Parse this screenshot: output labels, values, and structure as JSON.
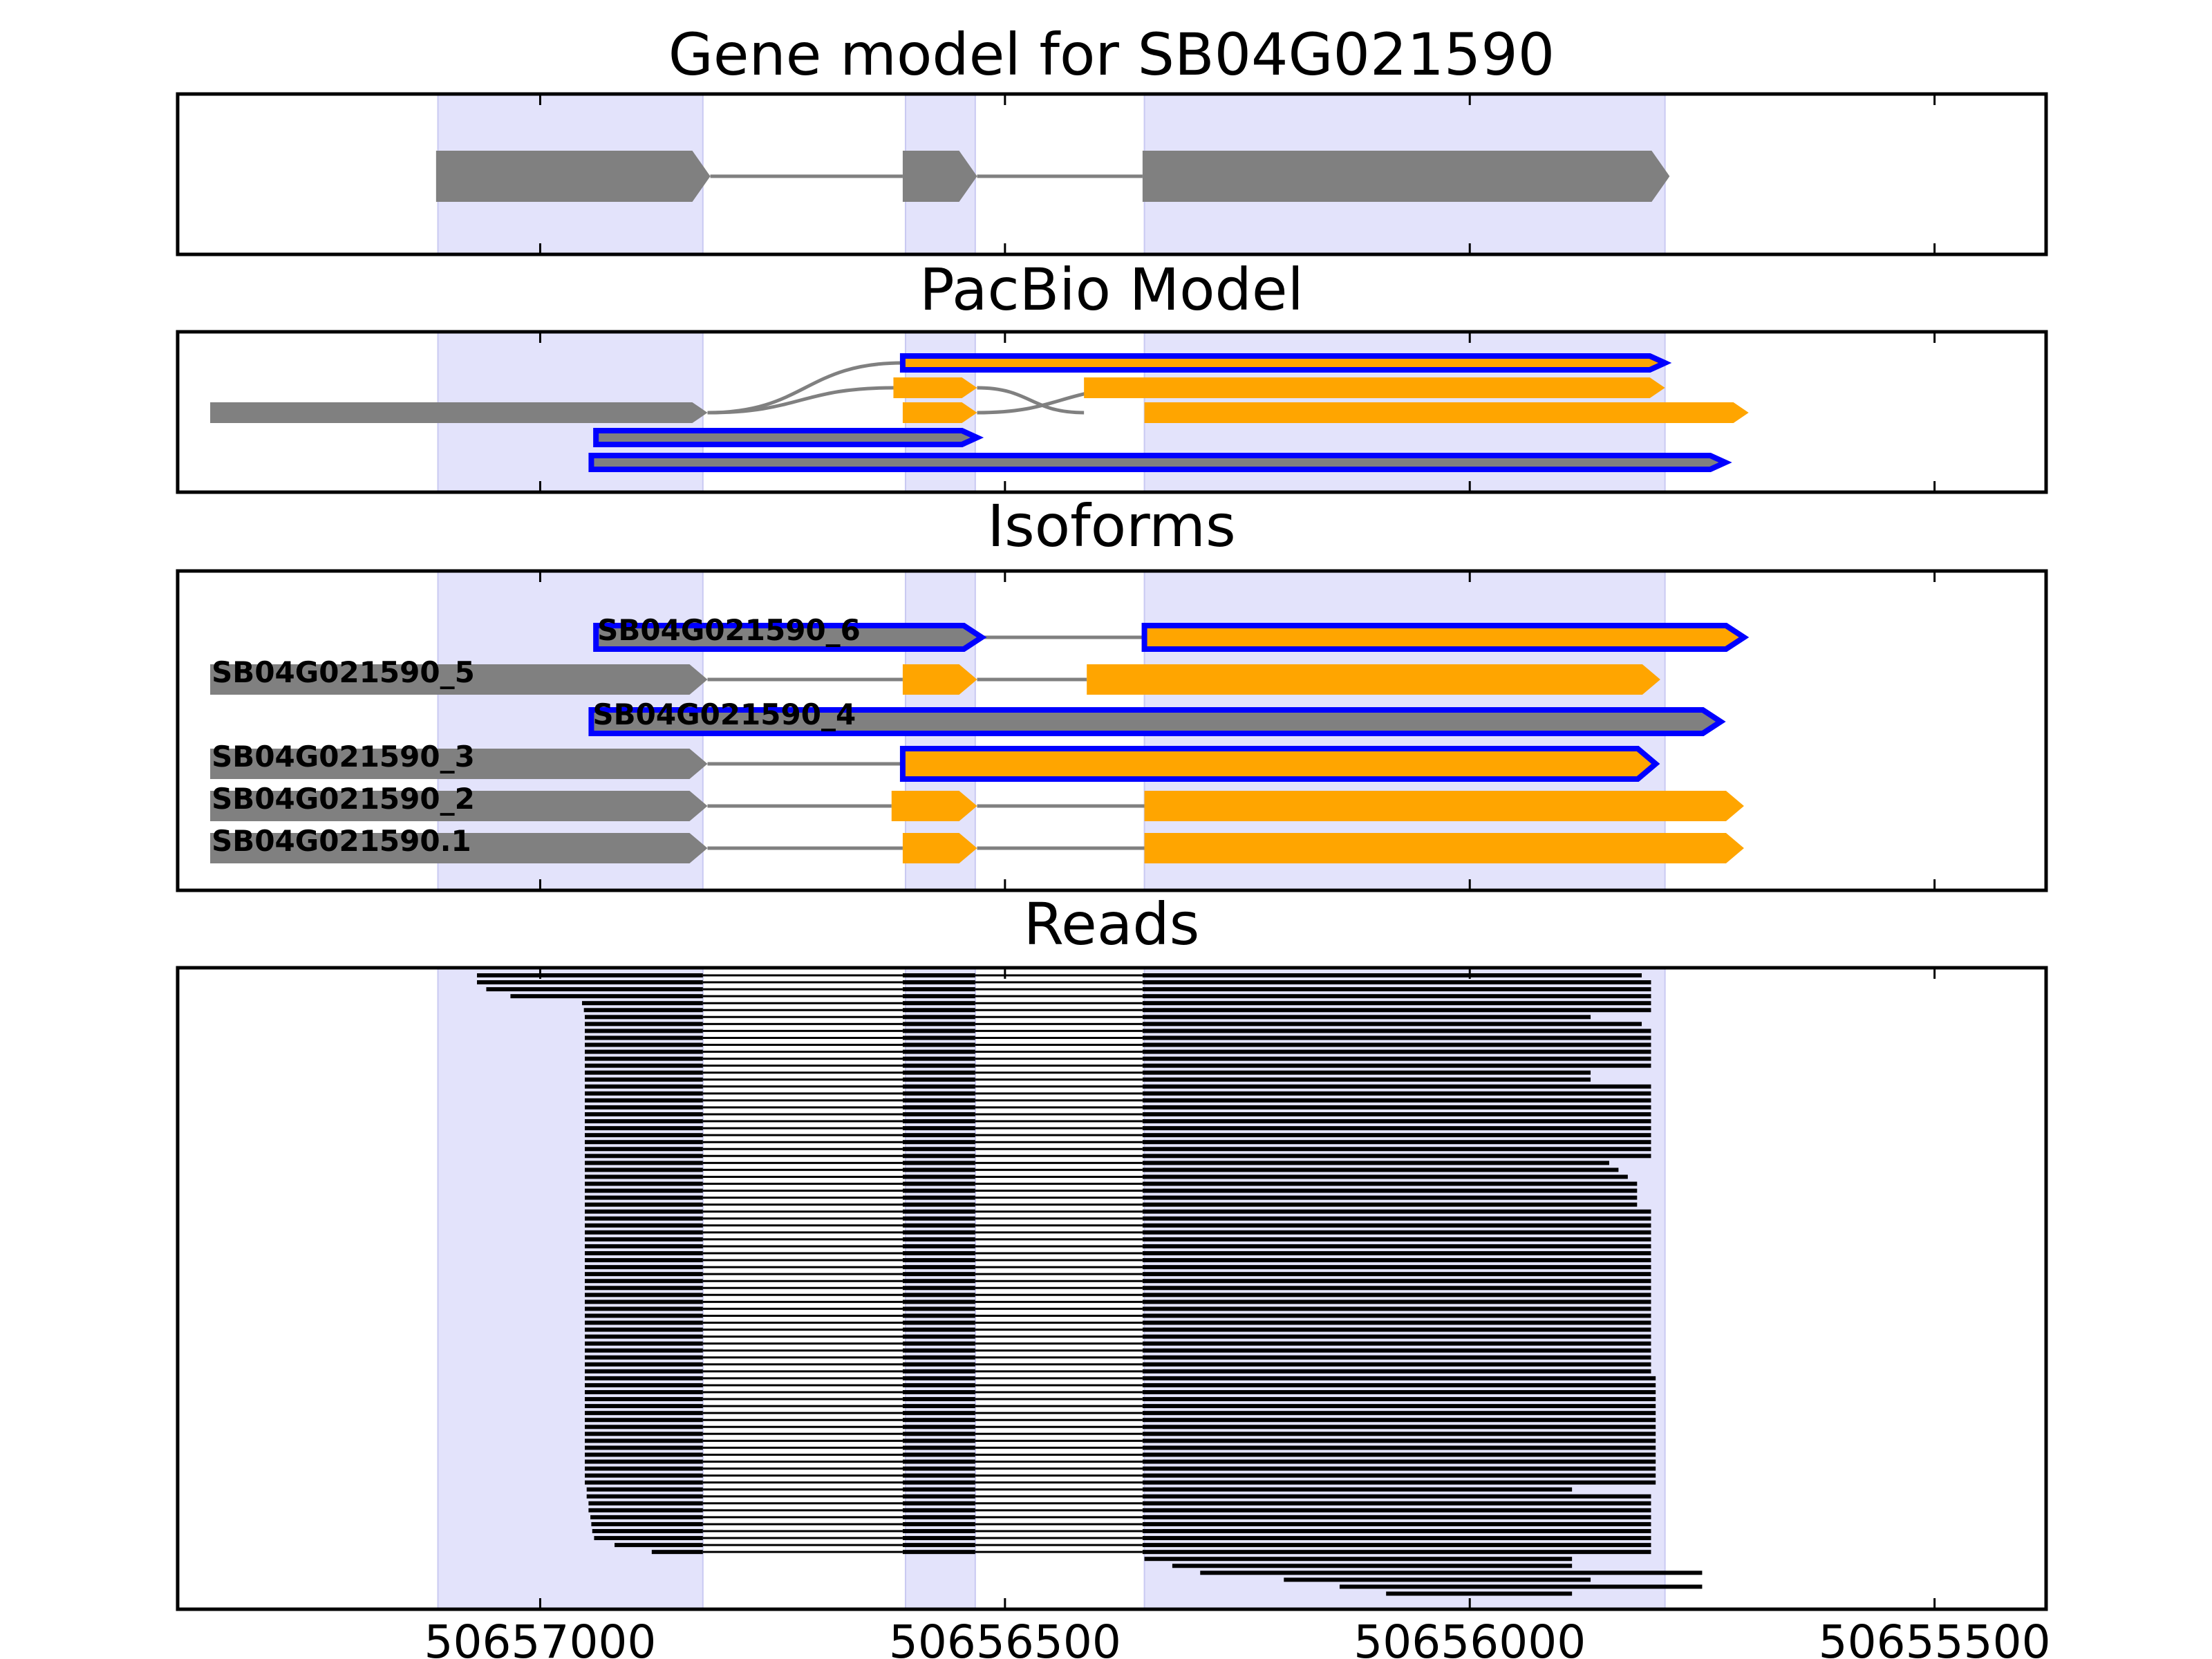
{
  "chart_data": {
    "type": "gene-track",
    "xlim": [
      50657390,
      50655380
    ],
    "x_ticks": [
      50657000,
      50656500,
      50656000,
      50655500
    ],
    "x_tick_labels": [
      "50657000",
      "50656500",
      "50656000",
      "50655500"
    ],
    "colors": {
      "noncoding": "#808080",
      "coding": "#ffa500",
      "outline": "#0000ff",
      "exon_band": "#e3e3fb",
      "read": "#000000",
      "intron": "#808080"
    },
    "exon_bands": [
      [
        50657110,
        50656825
      ],
      [
        50656607,
        50656532
      ],
      [
        50656350,
        50655790
      ]
    ],
    "panels": [
      {
        "key": "gene",
        "title": "Gene model for SB04G021590",
        "rows": 1,
        "transcripts": [
          {
            "row": 0,
            "label": "",
            "outline": false,
            "exons": [
              {
                "start": 50657112,
                "end": 50656817,
                "kind": "noncoding"
              },
              {
                "start": 50656610,
                "end": 50656530,
                "kind": "noncoding"
              },
              {
                "start": 50656352,
                "end": 50655785,
                "kind": "noncoding"
              }
            ]
          }
        ]
      },
      {
        "key": "pacbio",
        "title": "PacBio Model",
        "rows": 5,
        "transcripts": [
          {
            "row": 0,
            "label": "",
            "outline": true,
            "exons": [
              {
                "start": 50656610,
                "end": 50655790,
                "kind": "coding"
              }
            ]
          },
          {
            "row": 1,
            "label": "",
            "outline": false,
            "exons": [
              {
                "start": 50656620,
                "end": 50656530,
                "kind": "coding"
              },
              {
                "start": 50656415,
                "end": 50655790,
                "kind": "coding"
              }
            ]
          },
          {
            "row": 2,
            "label": "",
            "outline": false,
            "exons": [
              {
                "start": 50657355,
                "end": 50656820,
                "kind": "noncoding"
              },
              {
                "start": 50656610,
                "end": 50656530,
                "kind": "coding"
              },
              {
                "start": 50656350,
                "end": 50655700,
                "kind": "coding"
              }
            ]
          },
          {
            "row": 3,
            "label": "",
            "outline": true,
            "exons": [
              {
                "start": 50656940,
                "end": 50656530,
                "kind": "noncoding"
              }
            ]
          },
          {
            "row": 4,
            "label": "",
            "outline": true,
            "exons": [
              {
                "start": 50656945,
                "end": 50655725,
                "kind": "noncoding"
              }
            ]
          }
        ],
        "crossing_links": [
          [
            0,
            2,
            50656820,
            50656610
          ],
          [
            1,
            2,
            50656820,
            50656620
          ],
          [
            2,
            1,
            50656530,
            50656415
          ],
          [
            1,
            2,
            50656530,
            50656350
          ]
        ]
      },
      {
        "key": "isoforms",
        "title": "Isoforms",
        "rows": 6,
        "transcripts": [
          {
            "row": 0,
            "label": "SB04G021590_6",
            "outline": true,
            "exons": [
              {
                "start": 50656940,
                "end": 50656525,
                "kind": "noncoding"
              },
              {
                "start": 50656350,
                "end": 50655705,
                "kind": "coding"
              }
            ]
          },
          {
            "row": 1,
            "label": "SB04G021590_5",
            "outline": false,
            "exons": [
              {
                "start": 50657355,
                "end": 50656820,
                "kind": "noncoding"
              },
              {
                "start": 50656610,
                "end": 50656530,
                "kind": "coding"
              },
              {
                "start": 50656412,
                "end": 50655795,
                "kind": "coding"
              }
            ]
          },
          {
            "row": 2,
            "label": "SB04G021590_4",
            "outline": true,
            "exons": [
              {
                "start": 50656945,
                "end": 50655730,
                "kind": "noncoding"
              }
            ]
          },
          {
            "row": 3,
            "label": "SB04G021590_3",
            "outline": false,
            "exons": [
              {
                "start": 50657355,
                "end": 50656820,
                "kind": "noncoding"
              },
              {
                "start": 50656610,
                "end": 50655800,
                "kind": "coding",
                "outline": true
              }
            ]
          },
          {
            "row": 4,
            "label": "SB04G021590_2",
            "outline": false,
            "exons": [
              {
                "start": 50657355,
                "end": 50656820,
                "kind": "noncoding"
              },
              {
                "start": 50656622,
                "end": 50656530,
                "kind": "coding"
              },
              {
                "start": 50656350,
                "end": 50655705,
                "kind": "coding"
              }
            ]
          },
          {
            "row": 5,
            "label": "SB04G021590.1",
            "outline": false,
            "exons": [
              {
                "start": 50657355,
                "end": 50656820,
                "kind": "noncoding"
              },
              {
                "start": 50656610,
                "end": 50656530,
                "kind": "coding"
              },
              {
                "start": 50656350,
                "end": 50655705,
                "kind": "coding"
              }
            ]
          }
        ]
      },
      {
        "key": "reads",
        "title": "Reads",
        "read_starts": [
          50657068,
          50657068,
          50657058,
          50657032,
          50656955,
          50656953,
          50656952,
          50656952,
          50656952,
          50656952,
          50656952,
          50656952,
          50656952,
          50656952,
          50656952,
          50656952,
          50656952,
          50656952,
          50656952,
          50656952,
          50656952,
          50656952,
          50656952,
          50656952,
          50656952,
          50656952,
          50656952,
          50656952,
          50656952,
          50656952,
          50656952,
          50656952,
          50656952,
          50656952,
          50656952,
          50656952,
          50656952,
          50656952,
          50656952,
          50656952,
          50656952,
          50656952,
          50656952,
          50656952,
          50656952,
          50656952,
          50656952,
          50656952,
          50656952,
          50656952,
          50656952,
          50656952,
          50656952,
          50656952,
          50656952,
          50656952,
          50656952,
          50656952,
          50656952,
          50656952,
          50656952,
          50656952,
          50656952,
          50656952,
          50656952,
          50656952,
          50656952,
          50656952,
          50656952,
          50656952,
          50656952,
          50656952,
          50656952,
          50656952,
          50656950,
          50656950,
          50656948,
          50656948,
          50656946,
          50656945,
          50656944,
          50656942,
          50656920,
          50656880
        ],
        "read_ends": [
          50655815,
          50655805,
          50655805,
          50655805,
          50655805,
          50655805,
          50655870,
          50655815,
          50655805,
          50655805,
          50655805,
          50655805,
          50655805,
          50655805,
          50655870,
          50655870,
          50655805,
          50655805,
          50655805,
          50655805,
          50655805,
          50655805,
          50655805,
          50655805,
          50655805,
          50655805,
          50655805,
          50655850,
          50655840,
          50655830,
          50655820,
          50655820,
          50655820,
          50655820,
          50655805,
          50655805,
          50655805,
          50655805,
          50655805,
          50655805,
          50655805,
          50655805,
          50655805,
          50655805,
          50655805,
          50655805,
          50655805,
          50655805,
          50655805,
          50655805,
          50655805,
          50655805,
          50655805,
          50655805,
          50655805,
          50655805,
          50655805,
          50655805,
          50655800,
          50655800,
          50655800,
          50655800,
          50655800,
          50655800,
          50655800,
          50655800,
          50655800,
          50655800,
          50655800,
          50655800,
          50655800,
          50655800,
          50655800,
          50655800,
          50655890,
          50655805,
          50655805,
          50655805,
          50655805,
          50655805,
          50655805,
          50655805,
          50655805,
          50655805
        ],
        "tail_reads": [
          [
            50656350,
            50655890
          ],
          [
            50656320,
            50655890
          ],
          [
            50656290,
            50655750
          ],
          [
            50656200,
            50655870
          ],
          [
            50656140,
            50655750
          ],
          [
            50656090,
            50655890
          ]
        ],
        "intron_spans": [
          [
            50656825,
            50656610
          ],
          [
            50656532,
            50656352
          ]
        ]
      }
    ]
  }
}
